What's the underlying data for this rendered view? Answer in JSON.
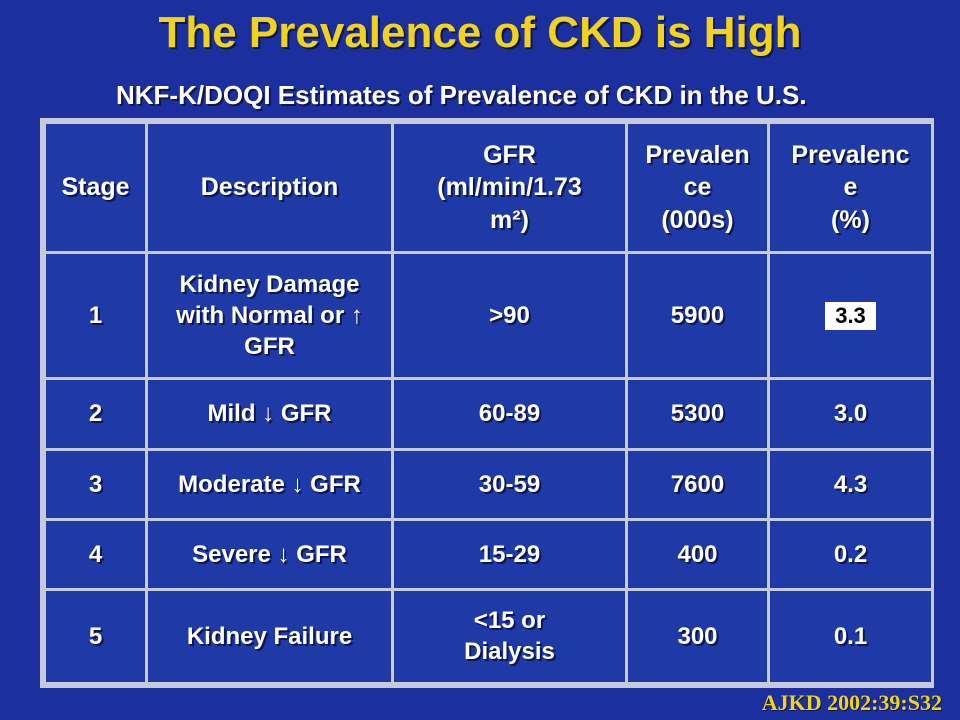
{
  "slide": {
    "title": "The Prevalence of CKD is High",
    "subtitle": "NKF-K/DOQI Estimates of Prevalence of CKD in the U.S.",
    "citation": "AJKD 2002:39:S32"
  },
  "table": {
    "headers": {
      "stage": "Stage",
      "description": "Description",
      "gfr_line1": "GFR",
      "gfr_line2": "(ml/min/1.73",
      "gfr_line3": "m²)",
      "prev_line1": "Prevalen",
      "prev_line2": "ce",
      "prev_line3": "(000s)",
      "pct_line1": "Prevalenc",
      "pct_line2": "e",
      "pct_line3": "(%)"
    },
    "rows": [
      {
        "stage": "1",
        "description_line1": "Kidney Damage",
        "description_line2": "with Normal or ↑",
        "description_line3": "GFR",
        "gfr": ">90",
        "prevalence": "5900",
        "percent": "3.3"
      },
      {
        "stage": "2",
        "description": "Mild ↓ GFR",
        "gfr": "60-89",
        "prevalence": "5300",
        "percent": "3.0"
      },
      {
        "stage": "3",
        "description": "Moderate ↓ GFR",
        "gfr": "30-59",
        "prevalence": "7600",
        "percent": "4.3"
      },
      {
        "stage": "4",
        "description": "Severe ↓ GFR",
        "gfr": "15-29",
        "prevalence": "400",
        "percent": "0.2"
      },
      {
        "stage": "5",
        "description": "Kidney Failure",
        "gfr_line1": "<15 or",
        "gfr_line2": "Dialysis",
        "prevalence": "300",
        "percent": "0.1"
      }
    ]
  },
  "colors": {
    "background": "#1c2f9e",
    "title": "#f2d31b",
    "text": "#ffffff",
    "grid": "#c7cbd9",
    "citation": "#f2d31b"
  }
}
